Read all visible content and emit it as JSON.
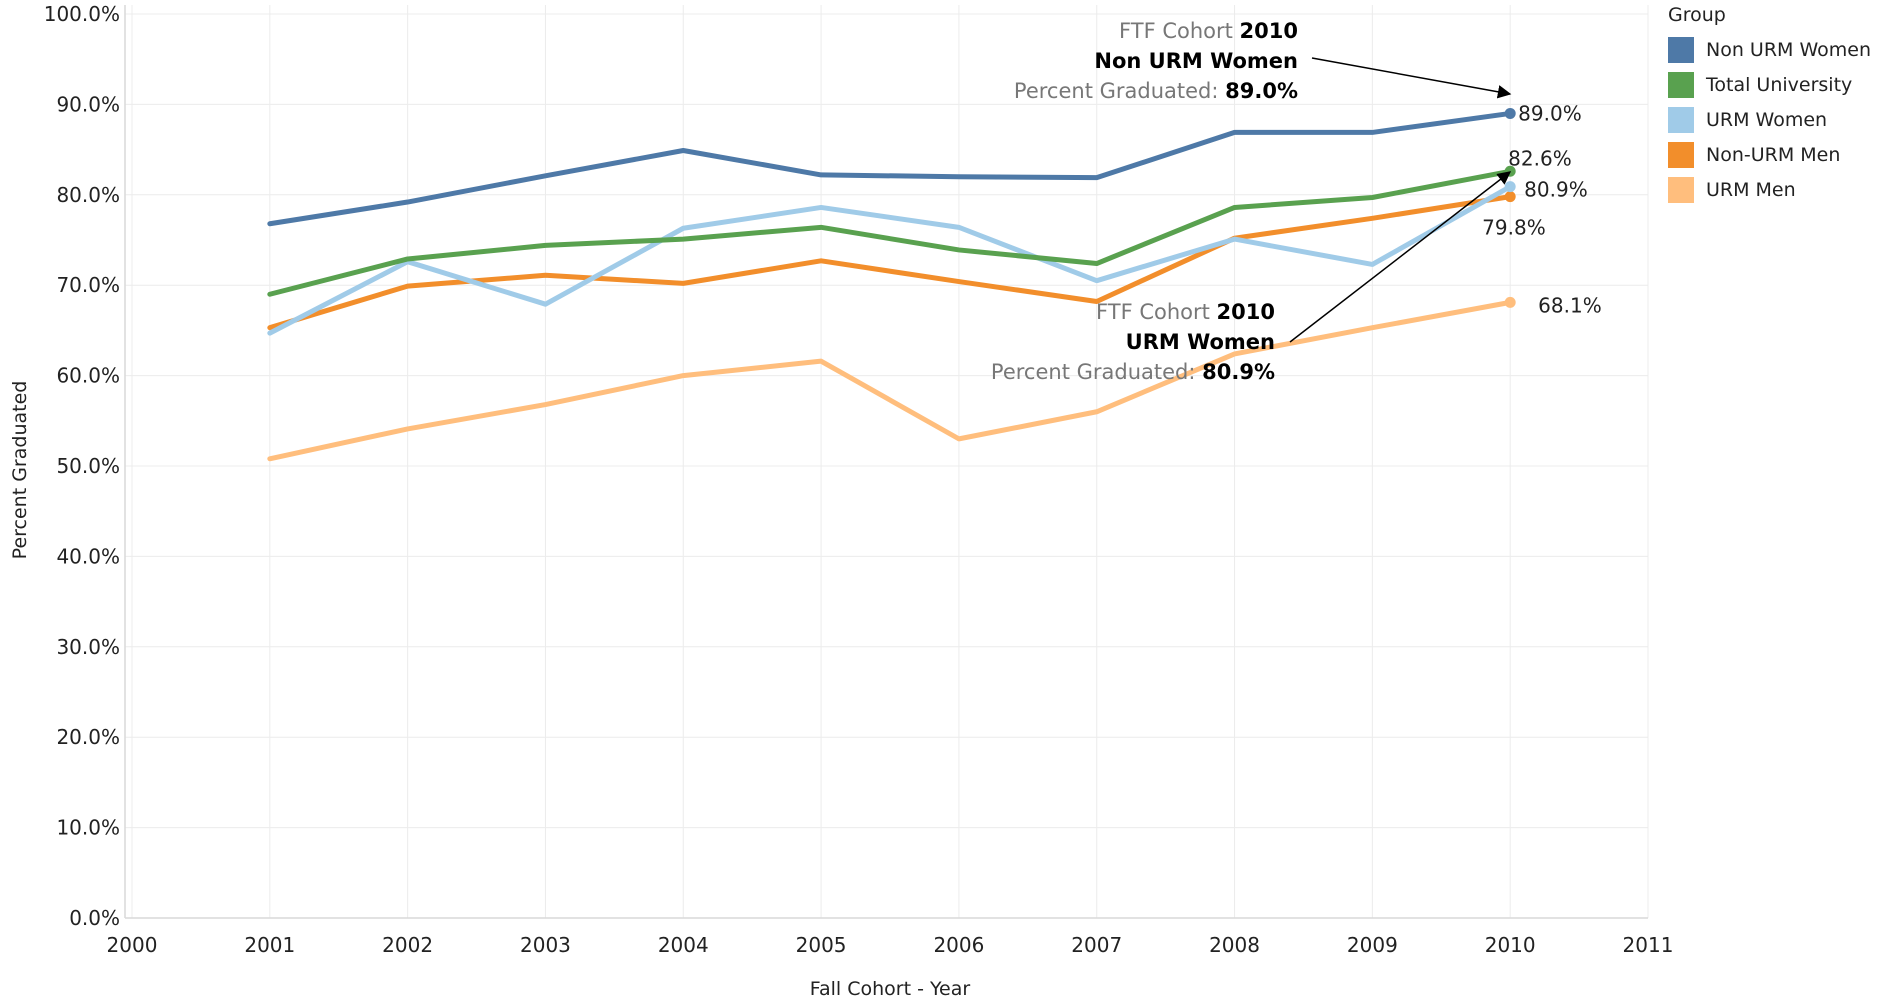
{
  "chart_data": {
    "type": "line",
    "xlabel": "Fall Cohort - Year",
    "ylabel": "Percent Graduated",
    "x_ticks": [
      "2000",
      "2001",
      "2002",
      "2003",
      "2004",
      "2005",
      "2006",
      "2007",
      "2008",
      "2009",
      "2010",
      "2011"
    ],
    "y_ticks": [
      "0.0%",
      "10.0%",
      "20.0%",
      "30.0%",
      "40.0%",
      "50.0%",
      "60.0%",
      "70.0%",
      "80.0%",
      "90.0%",
      "100.0%"
    ],
    "xlim": [
      2000,
      2011
    ],
    "ylim": [
      0,
      100
    ],
    "grid": true,
    "legend_position": "top-right",
    "legend_title": "Group",
    "x": [
      2001,
      2002,
      2003,
      2004,
      2005,
      2006,
      2007,
      2008,
      2009,
      2010
    ],
    "series": [
      {
        "name": "Non URM Women",
        "color": "#4e79a7",
        "values": [
          76.8,
          79.2,
          82.1,
          84.9,
          82.2,
          82.0,
          81.9,
          86.9,
          86.9,
          89.0
        ],
        "end_label": "89.0%"
      },
      {
        "name": "Total University",
        "color": "#59a14f",
        "values": [
          69.0,
          72.9,
          74.4,
          75.1,
          76.4,
          73.9,
          72.4,
          78.6,
          79.7,
          82.6
        ],
        "end_label": "82.6%"
      },
      {
        "name": "URM Women",
        "color": "#a0cbe8",
        "values": [
          64.7,
          72.6,
          67.9,
          76.3,
          78.6,
          76.4,
          70.5,
          75.1,
          72.3,
          80.9
        ],
        "end_label": "80.9%"
      },
      {
        "name": "Non-URM Men",
        "color": "#f28e2b",
        "values": [
          65.3,
          69.9,
          71.1,
          70.2,
          72.7,
          70.4,
          68.2,
          75.2,
          77.4,
          79.8
        ],
        "end_label": "79.8%"
      },
      {
        "name": "URM Men",
        "color": "#ffbe7d",
        "values": [
          50.8,
          54.1,
          56.8,
          60.0,
          61.6,
          53.0,
          56.0,
          62.4,
          65.3,
          68.1
        ],
        "end_label": "68.1%"
      }
    ],
    "annotations": [
      {
        "line1_grey": "FTF Cohort ",
        "line1_bold": "2010",
        "line2_bold": "Non URM Women",
        "line3_grey": "Percent Graduated: ",
        "line3_bold": "89.0%"
      },
      {
        "line1_grey": "FTF Cohort ",
        "line1_bold": "2010",
        "line2_bold": "URM Women",
        "line3_grey": "Percent Graduated: ",
        "line3_bold": "80.9%"
      }
    ]
  }
}
